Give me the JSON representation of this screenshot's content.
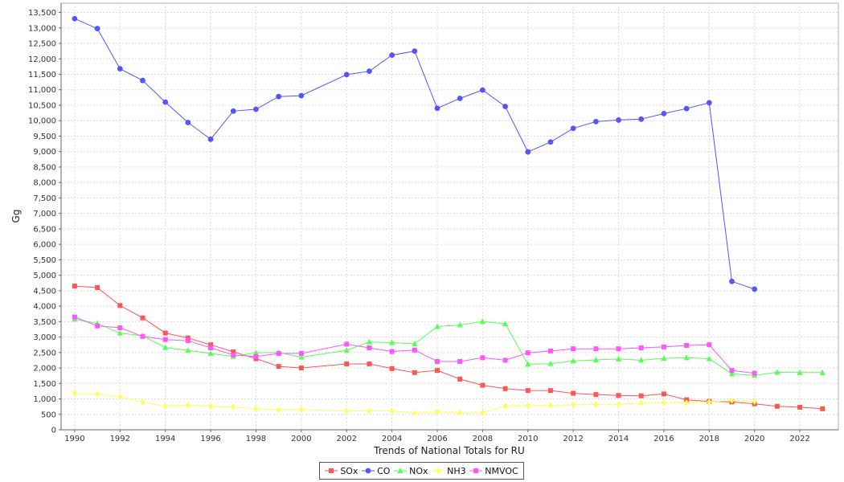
{
  "chart_data": {
    "type": "line",
    "title": "",
    "xlabel": "Trends of National Totals for RU",
    "ylabel": "Gg",
    "xlim": [
      1989.4,
      2023.7
    ],
    "ylim": [
      0,
      13800
    ],
    "x_ticks": [
      1990,
      1992,
      1994,
      1996,
      1998,
      2000,
      2002,
      2004,
      2006,
      2008,
      2010,
      2012,
      2014,
      2016,
      2018,
      2020,
      2022
    ],
    "y_ticks": [
      0,
      500,
      1000,
      1500,
      2000,
      2500,
      3000,
      3500,
      4000,
      4500,
      5000,
      5500,
      6000,
      6500,
      7000,
      7500,
      8000,
      8500,
      9000,
      9500,
      10000,
      10500,
      11000,
      11500,
      12000,
      12500,
      13000,
      13500
    ],
    "grid": true,
    "legend_position": "bottom-center",
    "series": [
      {
        "name": "SOx",
        "color": "#ff5555",
        "marker": "square",
        "x": [
          1990,
          1991,
          1992,
          1993,
          1994,
          1995,
          1996,
          1997,
          1998,
          1999,
          2000,
          2002,
          2003,
          2004,
          2005,
          2006,
          2007,
          2008,
          2009,
          2010,
          2011,
          2012,
          2013,
          2014,
          2015,
          2016,
          2017,
          2018,
          2019,
          2020,
          2021,
          2022,
          2023
        ],
        "y": [
          4650,
          4600,
          4020,
          3620,
          3130,
          2970,
          2750,
          2520,
          2300,
          2050,
          2000,
          2130,
          2130,
          1980,
          1850,
          1920,
          1640,
          1440,
          1330,
          1270,
          1270,
          1180,
          1140,
          1110,
          1100,
          1160,
          970,
          920,
          900,
          840,
          760,
          730,
          680
        ]
      },
      {
        "name": "CO",
        "color": "#5555ff",
        "marker": "circle",
        "x": [
          1990,
          1991,
          1992,
          1993,
          1994,
          1995,
          1996,
          1997,
          1998,
          1999,
          2000,
          2002,
          2003,
          2004,
          2005,
          2006,
          2007,
          2008,
          2009,
          2010,
          2011,
          2012,
          2013,
          2014,
          2015,
          2016,
          2017,
          2018,
          2019,
          2020
        ],
        "y": [
          13300,
          12980,
          11680,
          11300,
          10600,
          9940,
          9400,
          10310,
          10370,
          10780,
          10810,
          11490,
          11600,
          12120,
          12250,
          10400,
          10720,
          10990,
          10460,
          8990,
          9310,
          9750,
          9970,
          10020,
          10050,
          10230,
          10390,
          10580,
          4800,
          4550
        ]
      },
      {
        "name": "NOx",
        "color": "#55ff55",
        "marker": "triangle",
        "x": [
          1990,
          1991,
          1992,
          1993,
          1994,
          1995,
          1996,
          1997,
          1998,
          1999,
          2000,
          2002,
          2003,
          2004,
          2005,
          2006,
          2007,
          2008,
          2009,
          2010,
          2011,
          2012,
          2013,
          2014,
          2015,
          2016,
          2017,
          2018,
          2019,
          2020,
          2021,
          2022,
          2023
        ],
        "y": [
          3580,
          3440,
          3130,
          3040,
          2660,
          2570,
          2470,
          2370,
          2490,
          2500,
          2350,
          2570,
          2840,
          2820,
          2780,
          3340,
          3390,
          3500,
          3430,
          2120,
          2140,
          2230,
          2260,
          2290,
          2250,
          2310,
          2330,
          2300,
          1810,
          1760,
          1860,
          1850,
          1850
        ]
      },
      {
        "name": "NH3",
        "color": "#ffff55",
        "marker": "diamond",
        "x": [
          1990,
          1991,
          1992,
          1993,
          1994,
          1995,
          1996,
          1997,
          1998,
          1999,
          2000,
          2002,
          2003,
          2004,
          2005,
          2006,
          2007,
          2008,
          2009,
          2010,
          2011,
          2012,
          2013,
          2014,
          2015,
          2016,
          2017,
          2018,
          2019,
          2020
        ],
        "y": [
          1180,
          1160,
          1070,
          900,
          760,
          800,
          760,
          730,
          680,
          650,
          650,
          610,
          610,
          610,
          540,
          580,
          550,
          560,
          760,
          780,
          790,
          810,
          820,
          830,
          860,
          870,
          880,
          900,
          950,
          910
        ]
      },
      {
        "name": "NMVOC",
        "color": "#ff55ff",
        "marker": "square",
        "x": [
          1990,
          1991,
          1992,
          1993,
          1994,
          1995,
          1996,
          1997,
          1998,
          1999,
          2000,
          2002,
          2003,
          2004,
          2005,
          2006,
          2007,
          2008,
          2009,
          2010,
          2011,
          2012,
          2013,
          2014,
          2015,
          2016,
          2017,
          2018,
          2019,
          2020
        ],
        "y": [
          3650,
          3360,
          3300,
          3020,
          2920,
          2880,
          2650,
          2420,
          2370,
          2470,
          2470,
          2770,
          2650,
          2530,
          2580,
          2210,
          2210,
          2330,
          2250,
          2490,
          2550,
          2620,
          2620,
          2620,
          2650,
          2680,
          2730,
          2750,
          1920,
          1830
        ]
      }
    ]
  }
}
